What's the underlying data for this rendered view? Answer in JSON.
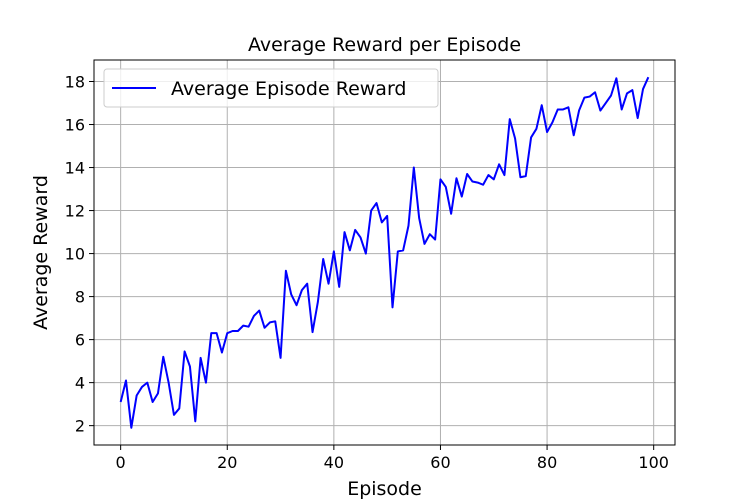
{
  "chart_data": {
    "type": "line",
    "title": "Average Reward per Episode",
    "xlabel": "Episode",
    "ylabel": "Average Reward",
    "xlim": [
      -5,
      104
    ],
    "ylim": [
      1.1,
      19.0
    ],
    "xticks": [
      0,
      20,
      40,
      60,
      80,
      100
    ],
    "yticks": [
      2,
      4,
      6,
      8,
      10,
      12,
      14,
      16,
      18
    ],
    "grid": true,
    "legend_position": "top-left",
    "series": [
      {
        "name": "Average Episode Reward",
        "color": "#0000ff",
        "x": [
          0,
          1,
          2,
          3,
          4,
          5,
          6,
          7,
          8,
          9,
          10,
          11,
          12,
          13,
          14,
          15,
          16,
          17,
          18,
          19,
          20,
          21,
          22,
          23,
          24,
          25,
          26,
          27,
          28,
          29,
          30,
          31,
          32,
          33,
          34,
          35,
          36,
          37,
          38,
          39,
          40,
          41,
          42,
          43,
          44,
          45,
          46,
          47,
          48,
          49,
          50,
          51,
          52,
          53,
          54,
          55,
          56,
          57,
          58,
          59,
          60,
          61,
          62,
          63,
          64,
          65,
          66,
          67,
          68,
          69,
          70,
          71,
          72,
          73,
          74,
          75,
          76,
          77,
          78,
          79,
          80,
          81,
          82,
          83,
          84,
          85,
          86,
          87,
          88,
          89,
          90,
          91,
          92,
          93,
          94,
          95,
          96,
          97,
          98,
          99
        ],
        "values": [
          3.1,
          4.1,
          1.9,
          3.4,
          3.8,
          4.0,
          3.1,
          3.5,
          5.2,
          4.0,
          2.5,
          2.8,
          5.45,
          4.75,
          2.2,
          5.15,
          4.0,
          6.3,
          6.3,
          5.4,
          6.3,
          6.4,
          6.4,
          6.65,
          6.6,
          7.1,
          7.35,
          6.55,
          6.8,
          6.85,
          5.15,
          9.2,
          8.1,
          7.6,
          8.3,
          8.6,
          6.35,
          7.75,
          9.75,
          8.6,
          10.1,
          8.45,
          11.0,
          10.15,
          11.1,
          10.75,
          10.0,
          12.0,
          12.35,
          11.45,
          11.75,
          7.5,
          10.1,
          10.15,
          11.3,
          14.0,
          11.65,
          10.45,
          10.9,
          10.65,
          13.45,
          13.1,
          11.85,
          13.5,
          12.65,
          13.7,
          13.35,
          13.3,
          13.2,
          13.65,
          13.45,
          14.15,
          13.65,
          16.25,
          15.35,
          13.55,
          13.6,
          15.4,
          15.8,
          16.9,
          15.65,
          16.1,
          16.7,
          16.7,
          16.8,
          15.5,
          16.65,
          17.25,
          17.3,
          17.5,
          16.65,
          17.0,
          17.35,
          18.15,
          16.7,
          17.45,
          17.6,
          16.3,
          17.65,
          18.2
        ]
      }
    ]
  }
}
